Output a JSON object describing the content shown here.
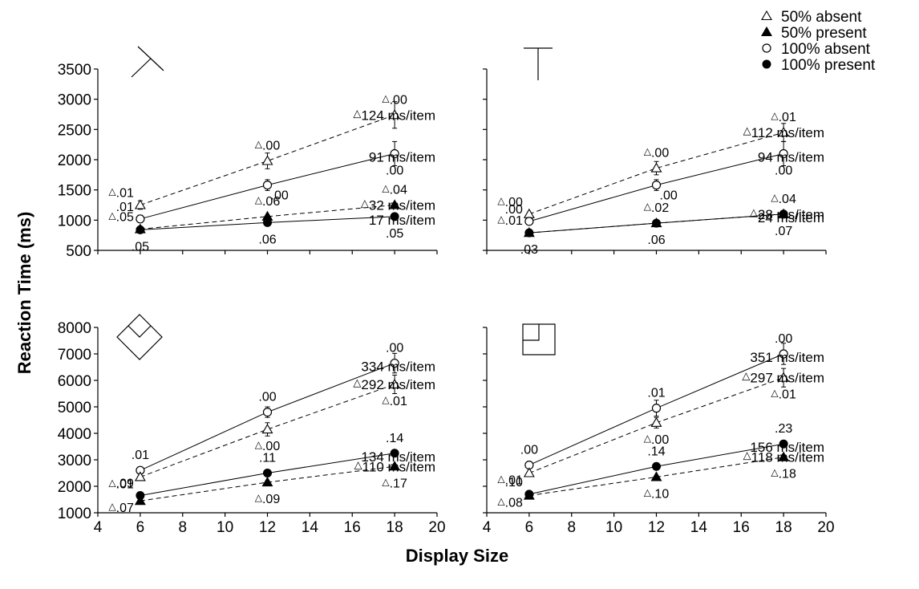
{
  "figure": {
    "ylabel": "Reaction Time (ms)",
    "xlabel": "Display Size"
  },
  "legend": [
    {
      "marker": "triangle-open",
      "label": "50% absent"
    },
    {
      "marker": "triangle-filled",
      "label": "50% present"
    },
    {
      "marker": "circle-open",
      "label": "100% absent"
    },
    {
      "marker": "circle-filled",
      "label": "100% present"
    }
  ],
  "chart_data": [
    {
      "type": "line",
      "stimulus_icon": "rotated-t-icon",
      "x": [
        6,
        12,
        18
      ],
      "xlim": [
        4,
        20
      ],
      "xticks": [
        4,
        6,
        8,
        10,
        12,
        14,
        16,
        18,
        20
      ],
      "ylim": [
        500,
        3500
      ],
      "yticks": [
        500,
        1000,
        1500,
        2000,
        2500,
        3000,
        3500
      ],
      "series": [
        {
          "name": "50% absent",
          "marker": "triangle-open",
          "dash": true,
          "values": [
            1250,
            1980,
            2740
          ],
          "err": [
            70,
            130,
            220
          ],
          "labels": [
            ".01",
            ".00",
            ".00"
          ],
          "label_pos": [
            "left-up",
            "up",
            "up"
          ],
          "slope": "124 ms/item",
          "slope_prefix": "△"
        },
        {
          "name": "100% absent",
          "marker": "circle-open",
          "dash": false,
          "values": [
            1020,
            1580,
            2100
          ],
          "err": [
            60,
            90,
            200
          ],
          "labels": [
            ".01",
            ".00",
            ".00"
          ],
          "label_pos": [
            "left-up",
            "right-down",
            "down"
          ],
          "slope": "91 ms/item",
          "slope_prefix": ""
        },
        {
          "name": "50% present",
          "marker": "triangle-filled",
          "dash": true,
          "values": [
            850,
            1060,
            1250
          ],
          "err": [
            0,
            0,
            0
          ],
          "labels": [
            ".05",
            ".06",
            ".04"
          ],
          "label_pos": [
            "left-up",
            "up",
            "up"
          ],
          "slope": "32 ms/item",
          "slope_prefix": "△"
        },
        {
          "name": "100% present",
          "marker": "circle-filled",
          "dash": false,
          "values": [
            840,
            960,
            1060
          ],
          "err": [
            0,
            0,
            0
          ],
          "labels": [
            ".05",
            ".06",
            ".05"
          ],
          "label_pos": [
            "down",
            "down",
            "down"
          ],
          "slope": "17 ms/item",
          "slope_prefix": ""
        }
      ]
    },
    {
      "type": "line",
      "stimulus_icon": "upright-t-icon",
      "x": [
        6,
        12,
        18
      ],
      "xlim": [
        4,
        20
      ],
      "xticks": [
        4,
        6,
        8,
        10,
        12,
        14,
        16,
        18,
        20
      ],
      "ylim": [
        500,
        3500
      ],
      "yticks": [
        500,
        1000,
        1500,
        2000,
        2500,
        3000,
        3500
      ],
      "series": [
        {
          "name": "50% absent",
          "marker": "triangle-open",
          "dash": true,
          "values": [
            1100,
            1860,
            2450
          ],
          "err": [
            0,
            110,
            150
          ],
          "labels": [
            ".00",
            ".00",
            ".01"
          ],
          "label_pos": [
            "left-up",
            "up",
            "up"
          ],
          "slope": "112 ms/item",
          "slope_prefix": "△"
        },
        {
          "name": "100% absent",
          "marker": "circle-open",
          "dash": false,
          "values": [
            980,
            1580,
            2100
          ],
          "err": [
            40,
            90,
            200
          ],
          "labels": [
            ".00",
            ".00",
            ".00"
          ],
          "label_pos": [
            "left-up",
            "right-down",
            "down"
          ],
          "slope": "94 ms/item",
          "slope_prefix": ""
        },
        {
          "name": "50% present",
          "marker": "triangle-filled",
          "dash": true,
          "values": [
            790,
            950,
            1100
          ],
          "err": [
            0,
            0,
            0
          ],
          "labels": [
            ".01",
            ".02",
            ".04"
          ],
          "label_pos": [
            "left-up",
            "up",
            "up"
          ],
          "slope": "28 ms/item",
          "slope_prefix": "△"
        },
        {
          "name": "100% present",
          "marker": "circle-filled",
          "dash": false,
          "values": [
            790,
            950,
            1100
          ],
          "err": [
            0,
            0,
            0
          ],
          "labels": [
            ".03",
            ".06",
            ".07"
          ],
          "label_pos": [
            "down",
            "down",
            "down"
          ],
          "slope": "24 ms/item",
          "slope_prefix": ""
        }
      ]
    },
    {
      "type": "line",
      "stimulus_icon": "diamond-icon",
      "x": [
        6,
        12,
        18
      ],
      "xlim": [
        4,
        20
      ],
      "xticks": [
        4,
        6,
        8,
        10,
        12,
        14,
        16,
        18,
        20
      ],
      "ylim": [
        1000,
        8000
      ],
      "yticks": [
        1000,
        2000,
        3000,
        4000,
        5000,
        6000,
        7000,
        8000
      ],
      "series": [
        {
          "name": "100% absent",
          "marker": "circle-open",
          "dash": false,
          "values": [
            2600,
            4800,
            6650
          ],
          "err": [
            0,
            200,
            370
          ],
          "labels": [
            ".01",
            ".00",
            ".00"
          ],
          "label_pos": [
            "up",
            "up",
            "up"
          ],
          "slope": "334 ms/item",
          "slope_prefix": ""
        },
        {
          "name": "50% absent",
          "marker": "triangle-open",
          "dash": true,
          "values": [
            2350,
            4150,
            5850
          ],
          "err": [
            0,
            250,
            350
          ],
          "labels": [
            ".01",
            ".00",
            ".01"
          ],
          "label_pos": [
            "left-down",
            "down",
            "down"
          ],
          "slope": "292 ms/item",
          "slope_prefix": "△"
        },
        {
          "name": "100% present",
          "marker": "circle-filled",
          "dash": false,
          "values": [
            1650,
            2500,
            3250
          ],
          "err": [
            0,
            0,
            0
          ],
          "labels": [
            ".09",
            ".11",
            ".14"
          ],
          "label_pos": [
            "left-up",
            "up",
            "up"
          ],
          "slope": "134 ms/item",
          "slope_prefix": ""
        },
        {
          "name": "50% present",
          "marker": "triangle-filled",
          "dash": true,
          "values": [
            1450,
            2150,
            2750
          ],
          "err": [
            0,
            0,
            0
          ],
          "labels": [
            ".07",
            ".09",
            ".17"
          ],
          "label_pos": [
            "left-down",
            "down",
            "down"
          ],
          "slope": "110 ms/item",
          "slope_prefix": "△"
        }
      ]
    },
    {
      "type": "line",
      "stimulus_icon": "square-icon",
      "x": [
        6,
        12,
        18
      ],
      "xlim": [
        4,
        20
      ],
      "xticks": [
        4,
        6,
        8,
        10,
        12,
        14,
        16,
        18,
        20
      ],
      "ylim": [
        1000,
        8000
      ],
      "yticks": [
        1000,
        2000,
        3000,
        4000,
        5000,
        6000,
        7000,
        8000
      ],
      "series": [
        {
          "name": "100% absent",
          "marker": "circle-open",
          "dash": false,
          "values": [
            2800,
            4950,
            7000
          ],
          "err": [
            0,
            300,
            400
          ],
          "labels": [
            ".00",
            ".01",
            ".00"
          ],
          "label_pos": [
            "up",
            "up",
            "up"
          ],
          "slope": "351 ms/item",
          "slope_prefix": ""
        },
        {
          "name": "50% absent",
          "marker": "triangle-open",
          "dash": true,
          "values": [
            2500,
            4400,
            6100
          ],
          "err": [
            0,
            200,
            350
          ],
          "labels": [
            ".01",
            ".00",
            ".01"
          ],
          "label_pos": [
            "left-down",
            "down",
            "down"
          ],
          "slope": "297 ms/item",
          "slope_prefix": "△"
        },
        {
          "name": "100% present",
          "marker": "circle-filled",
          "dash": false,
          "values": [
            1700,
            2750,
            3600
          ],
          "err": [
            0,
            0,
            0
          ],
          "labels": [
            ".10",
            ".14",
            ".23"
          ],
          "label_pos": [
            "left-up",
            "up",
            "up"
          ],
          "slope": "156 ms/item",
          "slope_prefix": ""
        },
        {
          "name": "50% present",
          "marker": "triangle-filled",
          "dash": true,
          "values": [
            1650,
            2350,
            3100
          ],
          "err": [
            0,
            0,
            0
          ],
          "labels": [
            ".08",
            ".10",
            ".18"
          ],
          "label_pos": [
            "left-down",
            "down",
            "down"
          ],
          "slope": "118 ms/item",
          "slope_prefix": "△"
        }
      ]
    }
  ]
}
